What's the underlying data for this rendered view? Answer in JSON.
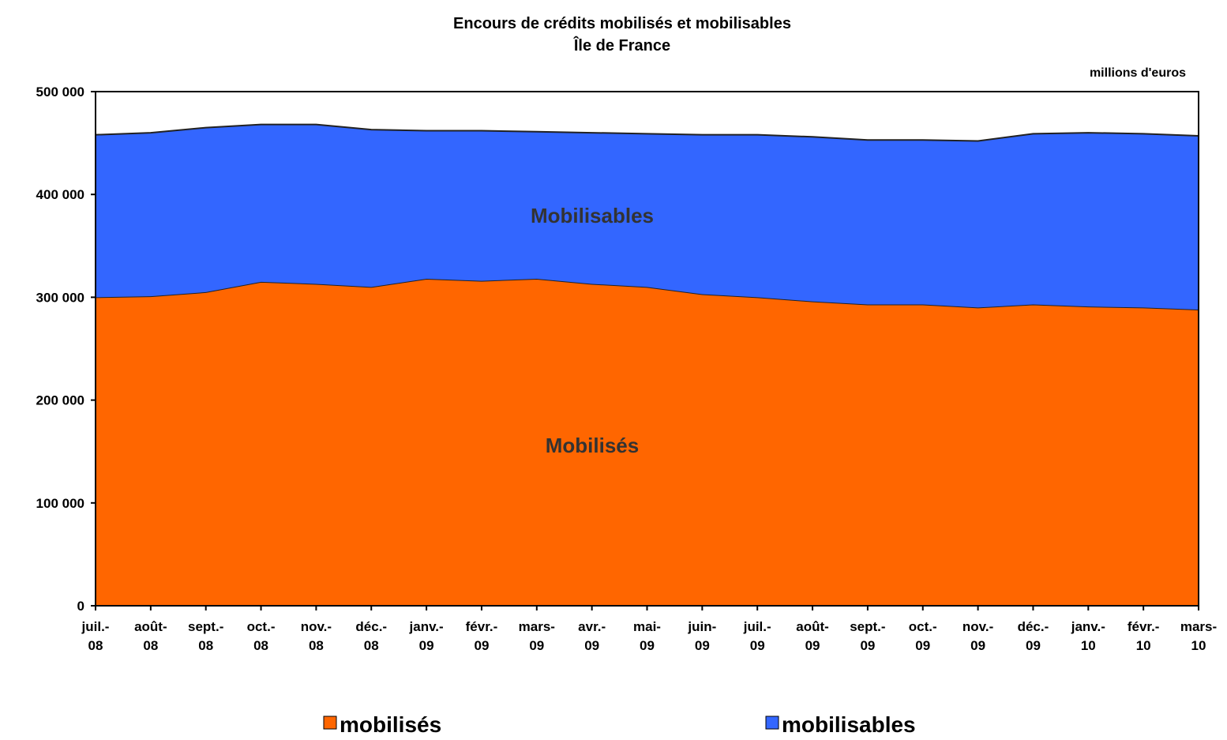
{
  "chart_data": {
    "type": "stacked_area",
    "title": "Encours de crédits mobilisés et mobilisables",
    "subtitle": "Île de France",
    "unit_label": "millions d'euros",
    "categories": [
      "juil.- 08",
      "août- 08",
      "sept.- 08",
      "oct.- 08",
      "nov.- 08",
      "déc.- 08",
      "janv.- 09",
      "févr.- 09",
      "mars- 09",
      "avr.- 09",
      "mai- 09",
      "juin- 09",
      "juil.- 09",
      "août- 09",
      "sept.- 09",
      "oct.- 09",
      "nov.- 09",
      "déc.- 09",
      "janv.- 10",
      "févr.- 10",
      "mars- 10"
    ],
    "series": [
      {
        "name": "mobilisés",
        "color": "#ff6600",
        "values": [
          300000,
          301000,
          305000,
          315000,
          313000,
          310000,
          318000,
          316000,
          318000,
          313000,
          310000,
          303000,
          300000,
          296000,
          293000,
          293000,
          290000,
          293000,
          291000,
          290000,
          288000
        ]
      },
      {
        "name": "mobilisables",
        "color": "#3366ff",
        "values": [
          158000,
          159000,
          160000,
          153000,
          155000,
          153000,
          144000,
          146000,
          143000,
          147000,
          149000,
          155000,
          158000,
          160000,
          160000,
          160000,
          162000,
          166000,
          169000,
          169000,
          169000
        ]
      }
    ],
    "annotations": [
      "Mobilisables",
      "Mobilisés"
    ],
    "ylim": [
      0,
      500000
    ],
    "yticks": [
      0,
      {
        "value": 100000,
        "label": "100 000"
      },
      {
        "value": 200000,
        "label": "200 000"
      },
      {
        "value": 300000,
        "label": "300 000"
      },
      {
        "value": 400000,
        "label": "400 000"
      },
      {
        "value": 500000,
        "label": "500 000"
      }
    ],
    "grid": false
  }
}
